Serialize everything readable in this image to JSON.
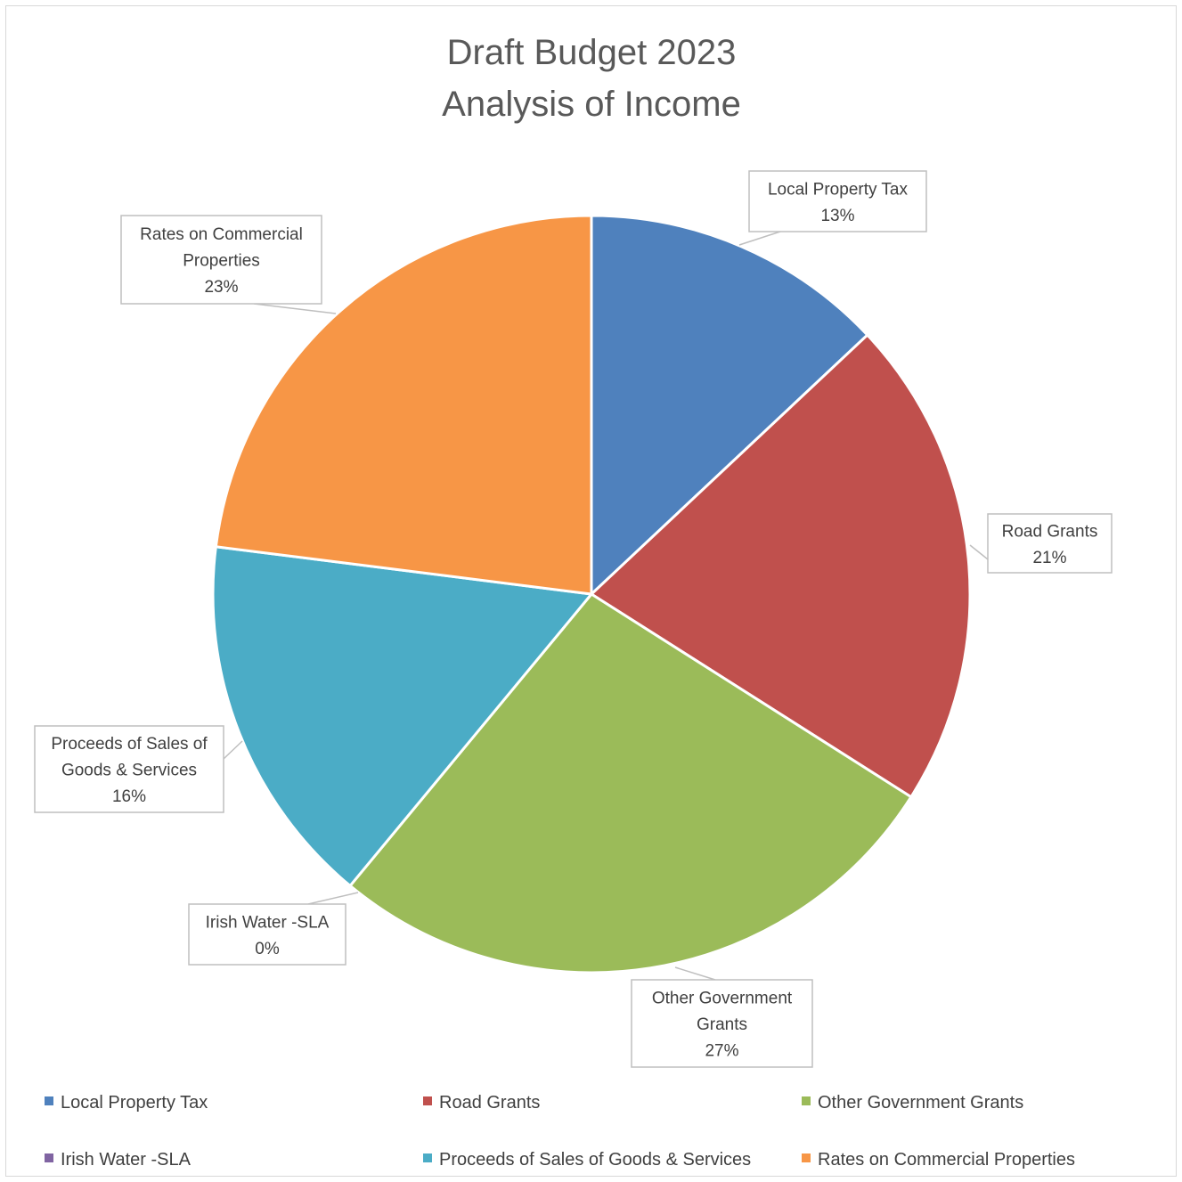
{
  "chart_data": {
    "type": "pie",
    "title_lines": [
      "Draft Budget 2023",
      "Analysis of Income"
    ],
    "slices": [
      {
        "name": "Local Property Tax",
        "value": 13,
        "pct_label": "13%",
        "color": "#4f81bd",
        "label_lines": [
          "Local Property Tax",
          "13%"
        ]
      },
      {
        "name": "Road Grants",
        "value": 21,
        "pct_label": "21%",
        "color": "#c0504d",
        "label_lines": [
          "Road Grants",
          "21%"
        ]
      },
      {
        "name": "Other Government Grants",
        "value": 27,
        "pct_label": "27%",
        "color": "#9bbb59",
        "label_lines": [
          "Other Government",
          "Grants",
          "27%"
        ]
      },
      {
        "name": "Irish Water -SLA",
        "value": 0,
        "pct_label": "0%",
        "color": "#8064a2",
        "label_lines": [
          "Irish Water -SLA",
          "0%"
        ]
      },
      {
        "name": "Proceeds of Sales of Goods & Services",
        "value": 16,
        "pct_label": "16%",
        "color": "#4bacc6",
        "label_lines": [
          "Proceeds of Sales of",
          "Goods & Services",
          "16%"
        ]
      },
      {
        "name": "Rates on Commercial Properties",
        "value": 23,
        "pct_label": "23%",
        "color": "#f79646",
        "label_lines": [
          "Rates on Commercial",
          "Properties",
          "23%"
        ]
      }
    ],
    "legend_position": "bottom"
  }
}
